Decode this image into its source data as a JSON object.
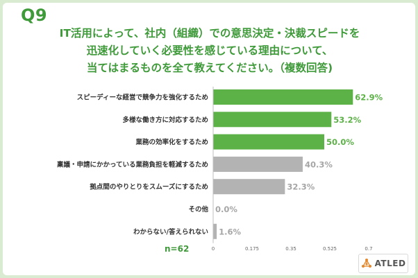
{
  "question_label": "Q9",
  "title_lines": [
    "IT活用によって、社内（組織）での意思決定・決裁スピードを",
    "迅速化していく必要性を感じている理由について、",
    "当てはまるものを全て教えてください。（複数回答)"
  ],
  "sample_size": "n=62",
  "logo_text": "ATLED",
  "colors": {
    "accent": "#3f9a3a",
    "bar_highlight": "#5cb247",
    "bar_other": "#b3b3b3",
    "label_highlight": "#5cb247",
    "label_other": "#a6a6a6"
  },
  "chart_data": {
    "type": "bar",
    "orientation": "horizontal",
    "categories": [
      "スピーディーな経営で競争力を強化するため",
      "多様な働き方に対応するため",
      "業務の効率化をするため",
      "稟議・申請にかかっている業務負担を軽減するため",
      "拠点間のやりとりをスムーズにするため",
      "その他",
      "わからない/答えられない"
    ],
    "values": [
      0.629,
      0.532,
      0.5,
      0.403,
      0.323,
      0.0,
      0.016
    ],
    "value_labels": [
      "62.9%",
      "53.2%",
      "50.0%",
      "40.3%",
      "32.3%",
      "0.0%",
      "1.6%"
    ],
    "highlighted": [
      true,
      true,
      true,
      false,
      false,
      false,
      false
    ],
    "xlim": [
      0,
      0.7
    ],
    "xticks": [
      "0",
      "0.175",
      "0.35",
      "0.525",
      "0.7"
    ],
    "grid": false
  }
}
